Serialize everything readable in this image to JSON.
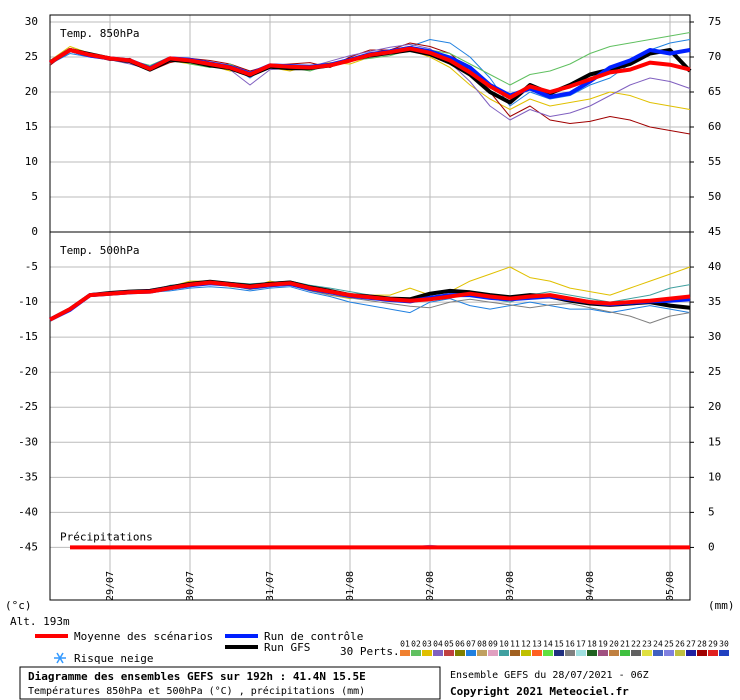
{
  "chart_data": [
    {
      "type": "line",
      "label": "Temp. 850hPa",
      "x": [
        0,
        6,
        12,
        18,
        24,
        30,
        36,
        42,
        48,
        54,
        60,
        66,
        72,
        78,
        84,
        90,
        96,
        102,
        108,
        114,
        120,
        126,
        132,
        138,
        144,
        150,
        156,
        162,
        168,
        174,
        180,
        186,
        192
      ],
      "xlim": [
        0,
        192
      ],
      "ylim": [
        0,
        31
      ],
      "yticks": [
        0,
        5,
        10,
        15,
        20,
        25,
        30
      ],
      "y2lim": [
        45,
        76
      ],
      "y2ticks": [
        50,
        55,
        60,
        65,
        70,
        75
      ],
      "grid": true,
      "series": [
        {
          "color": "#2080e0",
          "values": [
            24,
            25.5,
            25,
            24.8,
            24.6,
            23,
            25,
            24.8,
            24,
            23.8,
            22,
            24,
            23.8,
            23.2,
            24,
            24.8,
            25.5,
            26,
            26.5,
            27.5,
            27,
            25,
            22,
            18,
            20,
            19,
            19.5,
            21,
            22,
            24,
            26,
            27,
            27.5
          ]
        },
        {
          "color": "#e0c000",
          "values": [
            24.5,
            26.5,
            25.5,
            25,
            24.2,
            23.5,
            24.5,
            24,
            23.8,
            23,
            22.8,
            23.5,
            23,
            23.8,
            24.2,
            24,
            25,
            25.5,
            26,
            25,
            23.5,
            21,
            19,
            17.5,
            19,
            18,
            18.5,
            19,
            20,
            19.5,
            18.5,
            18,
            17.5
          ]
        },
        {
          "color": "#a00000",
          "values": [
            23.8,
            26,
            25.2,
            24.5,
            24.8,
            23,
            24.2,
            24.8,
            24.5,
            24,
            23,
            23.8,
            24,
            24.2,
            23.5,
            25,
            26,
            26,
            27,
            26.5,
            25.5,
            23,
            20,
            16.5,
            18,
            16,
            15.5,
            15.8,
            16.5,
            16,
            15,
            14.5,
            14
          ]
        },
        {
          "color": "#60c060",
          "values": [
            24,
            26.2,
            25.5,
            25,
            24.5,
            23.8,
            25,
            24,
            23.5,
            24,
            22.5,
            24,
            23.5,
            23,
            24,
            24.5,
            24.8,
            25.2,
            26,
            26,
            25.5,
            24,
            22.5,
            21,
            22.5,
            23,
            24,
            25.5,
            26.5,
            27,
            27.5,
            28,
            28.5
          ]
        },
        {
          "color": "#8060c0",
          "values": [
            24.3,
            25.8,
            25,
            24.6,
            24,
            23.2,
            24.6,
            24.4,
            24.2,
            23.2,
            21,
            23.2,
            23.4,
            23.6,
            24.4,
            25.2,
            25.8,
            26.4,
            26.8,
            26.2,
            24.2,
            21.5,
            18,
            16,
            17.5,
            16.5,
            17,
            18,
            19.5,
            21,
            22,
            21.5,
            20.5
          ]
        },
        {
          "name": "Run GFS",
          "color": "#000000",
          "values": [
            24.2,
            26,
            25.4,
            24.8,
            24.4,
            23.2,
            24.6,
            24.4,
            23.8,
            23.4,
            22.4,
            23.6,
            23.4,
            23.4,
            23.8,
            24.6,
            25.2,
            25.6,
            26,
            25.4,
            24.2,
            22.5,
            20,
            18.5,
            21,
            19.8,
            21,
            22.5,
            23.2,
            24,
            25.5,
            26,
            23
          ]
        },
        {
          "name": "Run de contrôle",
          "color": "#0020ff",
          "values": [
            24.2,
            26,
            25.2,
            24.8,
            24.5,
            23.4,
            24.8,
            24.6,
            24.1,
            23.6,
            22.6,
            23.8,
            23.7,
            23.6,
            23.9,
            24.6,
            25.4,
            25.8,
            26.3,
            25.8,
            24.9,
            23.5,
            21,
            19.5,
            20.5,
            19.3,
            19.8,
            21.5,
            23.5,
            24.5,
            26,
            25.5,
            26
          ]
        },
        {
          "name": "Moyenne des scénarios",
          "color": "#ff0000",
          "values": [
            24.2,
            26,
            25.3,
            24.8,
            24.5,
            23.3,
            24.8,
            24.5,
            24,
            23.5,
            22.5,
            23.8,
            23.6,
            23.5,
            23.8,
            24.5,
            25.3,
            25.7,
            26.2,
            25.6,
            24.5,
            22.8,
            20.8,
            19.2,
            20.8,
            20,
            20.8,
            21.8,
            22.8,
            23.2,
            24.2,
            23.9,
            23.2
          ]
        }
      ]
    },
    {
      "type": "line",
      "label": "Temp. 500hPa",
      "precip_label": "Précipitations",
      "x": [
        0,
        6,
        12,
        18,
        24,
        30,
        36,
        42,
        48,
        54,
        60,
        66,
        72,
        78,
        84,
        90,
        96,
        102,
        108,
        114,
        120,
        126,
        132,
        138,
        144,
        150,
        156,
        162,
        168,
        174,
        180,
        186,
        192
      ],
      "xlim": [
        0,
        192
      ],
      "ylim": [
        -52.5,
        0
      ],
      "yticks": [
        -45,
        -40,
        -35,
        -30,
        -25,
        -20,
        -15,
        -10,
        -5
      ],
      "y2lim": [
        -7.5,
        45
      ],
      "y2ticks": [
        0,
        5,
        10,
        15,
        20,
        25,
        30,
        35,
        40,
        45
      ],
      "grid": true,
      "xticks": [
        {
          "value": 18,
          "label": "29/07"
        },
        {
          "value": 42,
          "label": "30/07"
        },
        {
          "value": 66,
          "label": "31/07"
        },
        {
          "value": 90,
          "label": "01/08"
        },
        {
          "value": 114,
          "label": "02/08"
        },
        {
          "value": 138,
          "label": "03/08"
        },
        {
          "value": 162,
          "label": "04/08"
        },
        {
          "value": 186,
          "label": "05/08"
        }
      ],
      "series": [
        {
          "color": "#e0c000",
          "values": [
            -12.5,
            -11,
            -9,
            -8.5,
            -8.8,
            -8.2,
            -7.8,
            -7,
            -7,
            -7.8,
            -8,
            -7,
            -7.5,
            -8.2,
            -9,
            -9.5,
            -9,
            -9,
            -8,
            -9,
            -8.5,
            -7,
            -6,
            -5,
            -6.5,
            -7,
            -8,
            -8.5,
            -9,
            -8,
            -7,
            -6,
            -5
          ]
        },
        {
          "color": "#2080e0",
          "values": [
            -12.6,
            -11.2,
            -9.2,
            -9,
            -8.8,
            -8.6,
            -8.4,
            -8,
            -7.8,
            -8,
            -8.4,
            -8,
            -7.8,
            -8.6,
            -9.2,
            -10,
            -10.5,
            -11,
            -11.5,
            -10,
            -9.5,
            -10.5,
            -11,
            -10.5,
            -10,
            -10.5,
            -11,
            -11,
            -11.5,
            -11,
            -10.5,
            -11,
            -11.5
          ]
        },
        {
          "color": "#40a0a0",
          "values": [
            -12.4,
            -10.8,
            -9,
            -8.6,
            -8.4,
            -8.4,
            -7.6,
            -7.4,
            -7,
            -7.2,
            -7.4,
            -7.2,
            -7,
            -7.6,
            -8,
            -8.5,
            -9,
            -9.5,
            -10,
            -9,
            -8.5,
            -9,
            -9.5,
            -10,
            -9,
            -8.5,
            -9,
            -9.5,
            -10,
            -9.5,
            -9,
            -8,
            -7.5
          ]
        },
        {
          "color": "#808080",
          "values": [
            -12.5,
            -11,
            -9.1,
            -8.9,
            -8.7,
            -8.7,
            -8.2,
            -7.8,
            -7.4,
            -7.6,
            -8.2,
            -7.8,
            -7.6,
            -8.4,
            -9,
            -9.4,
            -9.8,
            -10.2,
            -10.6,
            -10.8,
            -10,
            -9.6,
            -10,
            -10.4,
            -10.8,
            -10.4,
            -10.2,
            -10.8,
            -11.4,
            -12,
            -13,
            -12,
            -11.5
          ]
        },
        {
          "name": "Run GFS",
          "color": "#000000",
          "values": [
            -12.5,
            -11,
            -9,
            -8.7,
            -8.5,
            -8.4,
            -7.9,
            -7.4,
            -7.1,
            -7.4,
            -7.7,
            -7.4,
            -7.2,
            -7.9,
            -8.4,
            -9,
            -9.2,
            -9.5,
            -9.6,
            -8.8,
            -8.4,
            -8.6,
            -9,
            -9.3,
            -9,
            -9.2,
            -9.8,
            -10.2,
            -10.4,
            -10.2,
            -10,
            -10.5,
            -10.8
          ]
        },
        {
          "name": "Run de contrôle",
          "color": "#0020ff",
          "values": [
            -12.5,
            -11.1,
            -9,
            -8.8,
            -8.6,
            -8.5,
            -8,
            -7.6,
            -7.3,
            -7.5,
            -7.9,
            -7.6,
            -7.4,
            -8.1,
            -8.6,
            -9.1,
            -9.4,
            -9.7,
            -9.9,
            -9.4,
            -9,
            -9,
            -9.4,
            -9.6,
            -9.4,
            -9.2,
            -9.6,
            -10,
            -10.3,
            -10.1,
            -9.9,
            -9.8,
            -9.6
          ]
        },
        {
          "name": "Moyenne des scénarios",
          "color": "#ff0000",
          "values": [
            -12.5,
            -11,
            -9,
            -8.8,
            -8.6,
            -8.5,
            -8,
            -7.5,
            -7.2,
            -7.5,
            -7.8,
            -7.5,
            -7.3,
            -8,
            -8.5,
            -9,
            -9.3,
            -9.6,
            -9.8,
            -9.6,
            -9.2,
            -8.8,
            -9.2,
            -9.5,
            -9.2,
            -9,
            -9.5,
            -10,
            -10.2,
            -10,
            -9.8,
            -9.5,
            -9.2
          ]
        }
      ],
      "precip_series": [
        {
          "color": "#e0a0c0",
          "values": [
            null,
            null,
            null,
            null,
            null,
            null,
            null,
            null,
            null,
            null,
            null,
            null,
            null,
            null,
            null,
            null,
            null,
            0,
            0,
            0.3,
            0,
            0.2,
            0,
            0,
            0,
            0,
            0,
            0.2,
            0,
            0.1,
            0,
            0,
            0
          ]
        },
        {
          "color": "#0020ff",
          "axis": "y2",
          "values": [
            null,
            null,
            null,
            null,
            null,
            null,
            null,
            null,
            null,
            null,
            null,
            null,
            null,
            null,
            null,
            0,
            0,
            0,
            0,
            0.1,
            0,
            0,
            0,
            0,
            0,
            0,
            0,
            0,
            0,
            0,
            0,
            0,
            0
          ]
        },
        {
          "color": "#ff0000",
          "axis": "y2",
          "values": [
            null,
            0,
            0,
            0,
            0,
            0,
            0,
            0,
            0,
            0,
            0,
            0,
            0,
            0,
            0,
            0,
            0,
            0,
            0,
            0,
            0,
            0,
            0,
            0,
            0,
            0,
            0,
            0,
            0,
            0,
            0,
            0,
            0
          ]
        }
      ]
    }
  ],
  "left_unit": "(°c)",
  "right_unit": "(mm)",
  "altitude": "Alt. 193m",
  "legend": {
    "mean": "Moyenne des scénarios",
    "control": "Run de contrôle",
    "gfs": "Run GFS",
    "snow": "Risque neige",
    "perts_label": "30 Perts."
  },
  "perturbations": [
    {
      "name": "01",
      "color": "#f08030"
    },
    {
      "name": "02",
      "color": "#60c060"
    },
    {
      "name": "03",
      "color": "#e0c000"
    },
    {
      "name": "04",
      "color": "#8060c0"
    },
    {
      "name": "05",
      "color": "#c04040"
    },
    {
      "name": "06",
      "color": "#808000"
    },
    {
      "name": "07",
      "color": "#2080e0"
    },
    {
      "name": "08",
      "color": "#c0a060"
    },
    {
      "name": "09",
      "color": "#e0a0c0"
    },
    {
      "name": "10",
      "color": "#40a0a0"
    },
    {
      "name": "11",
      "color": "#a06020"
    },
    {
      "name": "12",
      "color": "#c0c000"
    },
    {
      "name": "13",
      "color": "#ff6020"
    },
    {
      "name": "14",
      "color": "#60e040"
    },
    {
      "name": "15",
      "color": "#203080"
    },
    {
      "name": "16",
      "color": "#808080"
    },
    {
      "name": "17",
      "color": "#a0e0e0"
    },
    {
      "name": "18",
      "color": "#206020"
    },
    {
      "name": "19",
      "color": "#a05080"
    },
    {
      "name": "20",
      "color": "#c08040"
    },
    {
      "name": "21",
      "color": "#40c040"
    },
    {
      "name": "22",
      "color": "#606060"
    },
    {
      "name": "23",
      "color": "#e0e040"
    },
    {
      "name": "24",
      "color": "#4060c0"
    },
    {
      "name": "25",
      "color": "#8080e0"
    },
    {
      "name": "26",
      "color": "#c0c040"
    },
    {
      "name": "27",
      "color": "#2020a0"
    },
    {
      "name": "28",
      "color": "#a00000"
    },
    {
      "name": "29",
      "color": "#e02020"
    },
    {
      "name": "30",
      "color": "#2040c0"
    }
  ],
  "footer": {
    "title": "Diagramme des ensembles GEFS sur 192h : 41.4N 15.5E",
    "subtitle": "Températures 850hPa et 500hPa (°C) , précipitations (mm)",
    "run": "Ensemble GEFS du 28/07/2021 - 06Z",
    "copyright": "Copyright 2021 Meteociel.fr"
  }
}
